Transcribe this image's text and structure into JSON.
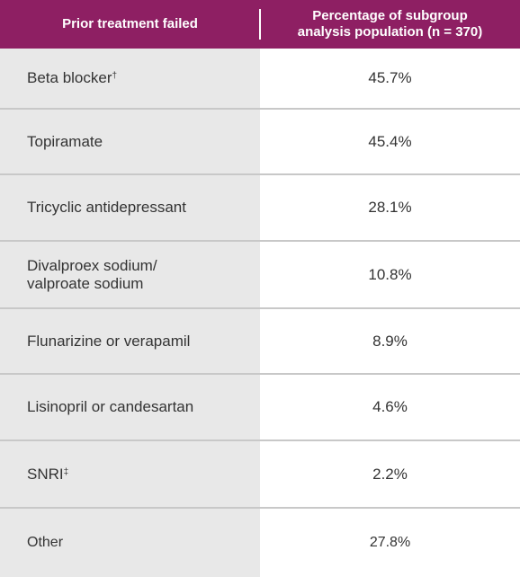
{
  "header": {
    "col1": "Prior treatment failed",
    "col2_line1": "Percentage of subgroup",
    "col2_line2": "analysis population (n = 370)"
  },
  "rows": [
    {
      "treatment": "Beta blocker",
      "mark": "†",
      "value": "45.7%"
    },
    {
      "treatment": "Topiramate",
      "mark": "",
      "value": "45.4%"
    },
    {
      "treatment": "Tricyclic antidepressant",
      "mark": "",
      "value": "28.1%"
    },
    {
      "treatment_line1": "Divalproex sodium/",
      "treatment_line2": "valproate sodium",
      "value": "10.8%"
    },
    {
      "treatment": "Flunarizine or verapamil",
      "mark": "",
      "value": "8.9%"
    },
    {
      "treatment": "Lisinopril or candesartan",
      "mark": "",
      "value": "4.6%"
    },
    {
      "treatment": "SNRI",
      "mark": "‡",
      "value": "2.2%"
    },
    {
      "treatment": "Other",
      "mark": "",
      "value": "27.8%"
    }
  ],
  "colors": {
    "header": "#8e1f63",
    "left_cell": "#e8e8e8",
    "separator": "#c8c8c8"
  }
}
